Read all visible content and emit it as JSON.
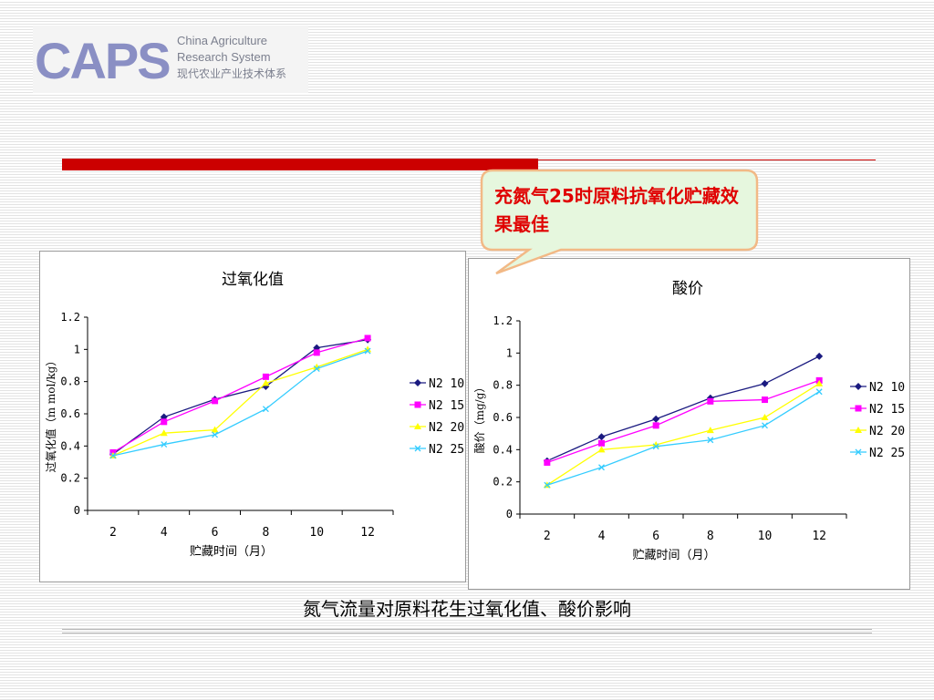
{
  "logo": {
    "mark": "CAPS",
    "line1": "China Agriculture",
    "line2": "Research System",
    "line3": "现代农业产业技术体系"
  },
  "callout": {
    "text": "充氮气25时原料抗氧化贮藏效果最佳"
  },
  "caption": "氮气流量对原料花生过氧化值、酸价影响",
  "colors": {
    "accent_bar": "#cc0000",
    "callout_fill": "#e6f7de",
    "callout_border": "#f2b986"
  },
  "chart_data": [
    {
      "type": "line",
      "title": "过氧化值",
      "xlabel": "贮藏时间（月）",
      "ylabel": "过氧化值（m mol/kg）",
      "x": [
        2,
        4,
        6,
        8,
        10,
        12
      ],
      "ylim": [
        0,
        1.2
      ],
      "yticks": [
        "0",
        "0.2",
        "0.4",
        "0.6",
        "0.8",
        "1",
        "1.2"
      ],
      "grid": false,
      "legend": "right",
      "series": [
        {
          "name": "N2 10",
          "color": "#1a1a80",
          "marker": "diamond",
          "values": [
            0.35,
            0.58,
            0.69,
            0.77,
            1.01,
            1.06
          ]
        },
        {
          "name": "N2 15",
          "color": "#ff00ff",
          "marker": "square",
          "values": [
            0.36,
            0.55,
            0.68,
            0.83,
            0.98,
            1.07
          ]
        },
        {
          "name": "N2 20",
          "color": "#ffff00",
          "marker": "triangle",
          "values": [
            0.34,
            0.48,
            0.5,
            0.79,
            0.89,
            1.0
          ]
        },
        {
          "name": "N2 25",
          "color": "#33ccff",
          "marker": "x",
          "values": [
            0.34,
            0.41,
            0.47,
            0.63,
            0.88,
            0.99
          ]
        }
      ]
    },
    {
      "type": "line",
      "title": "酸价",
      "xlabel": "贮藏时间（月）",
      "ylabel": "酸价（mg/g）",
      "x": [
        2,
        4,
        6,
        8,
        10,
        12
      ],
      "ylim": [
        0,
        1.2
      ],
      "yticks": [
        "0",
        "0.2",
        "0.4",
        "0.6",
        "0.8",
        "1",
        "1.2"
      ],
      "grid": false,
      "legend": "right",
      "series": [
        {
          "name": "N2 10",
          "color": "#1a1a80",
          "marker": "diamond",
          "values": [
            0.33,
            0.48,
            0.59,
            0.72,
            0.81,
            0.98
          ]
        },
        {
          "name": "N2 15",
          "color": "#ff00ff",
          "marker": "square",
          "values": [
            0.32,
            0.44,
            0.55,
            0.7,
            0.71,
            0.83
          ]
        },
        {
          "name": "N2 20",
          "color": "#ffff00",
          "marker": "triangle",
          "values": [
            0.18,
            0.4,
            0.43,
            0.52,
            0.6,
            0.81
          ]
        },
        {
          "name": "N2 25",
          "color": "#33ccff",
          "marker": "x",
          "values": [
            0.18,
            0.29,
            0.42,
            0.46,
            0.55,
            0.76
          ]
        }
      ]
    }
  ]
}
